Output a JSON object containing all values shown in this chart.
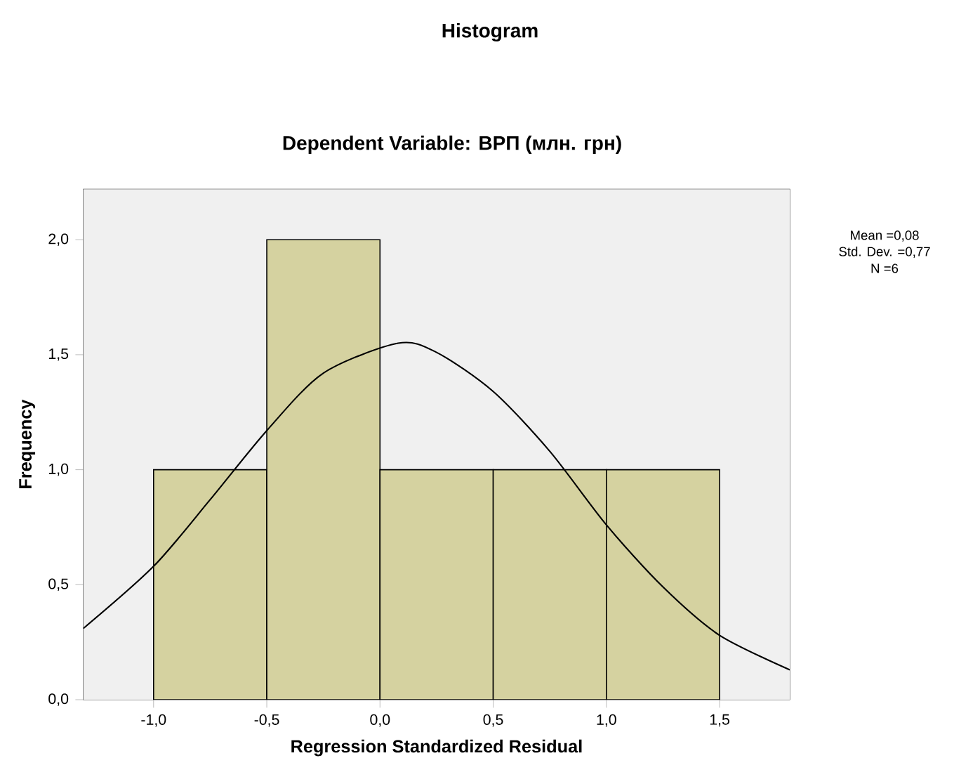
{
  "chart_data": {
    "type": "histogram",
    "title": "Histogram",
    "subtitle": "Dependent Variable: ВРП (млн. грн)",
    "xlabel": "Regression Standardized Residual",
    "ylabel": "Frequency",
    "annotations": [
      "Mean =0,08",
      "Std. Dev. =0,77",
      "N =6"
    ],
    "bins": [
      -1.0,
      -0.5,
      0.0,
      0.5,
      1.0,
      1.5
    ],
    "series": [
      {
        "color": "#d5d2a0",
        "values": [
          1,
          2,
          1,
          1,
          1
        ]
      },
      {
        "type": "line",
        "color": "#000000",
        "x": [
          -1.31,
          -1.0,
          -0.75,
          -0.5,
          -0.25,
          0.08,
          0.25,
          0.5,
          0.75,
          1.0,
          1.25,
          1.5,
          1.81
        ],
        "values": [
          0.31,
          0.58,
          0.87,
          1.17,
          1.42,
          1.55,
          1.51,
          1.34,
          1.08,
          0.76,
          0.49,
          0.28,
          0.13
        ]
      }
    ],
    "xlim": [
      -1.31,
      1.81
    ],
    "xticks": [
      {
        "value": -1.0,
        "label": "-1,0"
      },
      {
        "value": -0.5,
        "label": "-0,5"
      },
      {
        "value": 0.0,
        "label": "0,0"
      },
      {
        "value": 0.5,
        "label": "0,5"
      },
      {
        "value": 1.0,
        "label": "1,0"
      },
      {
        "value": 1.5,
        "label": "1,5"
      }
    ],
    "ylim": [
      0,
      2.22
    ],
    "yticks": [
      {
        "value": 0.0,
        "label": "0,0"
      },
      {
        "value": 0.5,
        "label": "0,5"
      },
      {
        "value": 1.0,
        "label": "1,0"
      },
      {
        "value": 1.5,
        "label": "1,5"
      },
      {
        "value": 2.0,
        "label": "2,0"
      }
    ],
    "grid": false,
    "marker": "none",
    "line_style": "solid"
  }
}
